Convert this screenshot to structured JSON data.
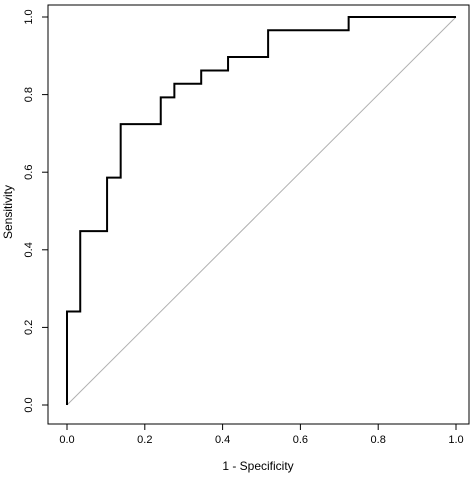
{
  "chart_data": {
    "type": "line",
    "title": "",
    "xlabel": "1 - Specificity",
    "ylabel": "Sensitivity",
    "xlim": [
      0,
      1
    ],
    "ylim": [
      0,
      1
    ],
    "x_ticks": [
      0.0,
      0.2,
      0.4,
      0.6,
      0.8,
      1.0
    ],
    "x_tick_labels": [
      "0.0",
      "0.2",
      "0.4",
      "0.6",
      "0.8",
      "1.0"
    ],
    "y_ticks": [
      0.0,
      0.2,
      0.4,
      0.6,
      0.8,
      1.0
    ],
    "y_tick_labels": [
      "0.0",
      "0.2",
      "0.4",
      "0.6",
      "0.8",
      "1.0"
    ],
    "grid": false,
    "legend": "none",
    "series": [
      {
        "style": "step",
        "color": "#000000",
        "x": [
          0.0,
          0.0,
          0.034,
          0.034,
          0.103,
          0.103,
          0.138,
          0.138,
          0.241,
          0.241,
          0.276,
          0.276,
          0.345,
          0.345,
          0.414,
          0.414,
          0.517,
          0.517,
          0.724,
          0.724,
          1.0
        ],
        "y": [
          0.0,
          0.241,
          0.241,
          0.448,
          0.448,
          0.586,
          0.586,
          0.724,
          0.724,
          0.793,
          0.793,
          0.828,
          0.828,
          0.862,
          0.862,
          0.897,
          0.897,
          0.966,
          0.966,
          1.0,
          1.0
        ]
      },
      {
        "style": "reference-diagonal",
        "color": "#b0b0b0",
        "x": [
          0,
          1
        ],
        "y": [
          0,
          1
        ]
      }
    ]
  }
}
